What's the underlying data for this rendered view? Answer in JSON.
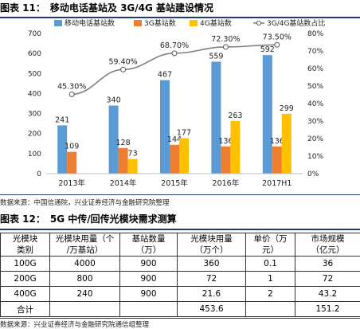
{
  "figure1": {
    "label": "图表 11：",
    "title": "移动电话基站及 3G/4G 基站建设情况",
    "source": "数据来源：中国信通院，兴业证券经济与金融研究院整理"
  },
  "chart_data": {
    "type": "bar",
    "categories": [
      "2013年",
      "2014年",
      "2015年",
      "2016年",
      "2017H1"
    ],
    "series": [
      {
        "name": "移动电话基站数",
        "values": [
          241,
          340,
          467,
          559,
          592
        ],
        "color": "#5b9bd5"
      },
      {
        "name": "3G基站数",
        "values": [
          109,
          128,
          144,
          136,
          136
        ],
        "color": "#ed7d31"
      },
      {
        "name": "4G基站数",
        "values": [
          null,
          73,
          177,
          263,
          299
        ],
        "color": "#ffc000"
      },
      {
        "name": "3G/4G基站数占比",
        "type": "line",
        "axis": "right",
        "values": [
          45.3,
          59.4,
          68.7,
          72.3,
          73.5
        ],
        "color": "#7f7f7f"
      }
    ],
    "value_labels": {
      "移动电话基站数": [
        "241",
        "340",
        "467",
        "559",
        "592"
      ],
      "3G基站数": [
        "109",
        "128",
        "144",
        "136",
        "136"
      ],
      "4G基站数": [
        "",
        "73",
        "177",
        "263",
        "299"
      ],
      "3G/4G基站数占比": [
        "45.30%",
        "59.40%",
        "68.70%",
        "72.30%",
        "73.50%"
      ]
    },
    "y_left": {
      "min": 0,
      "max": 700,
      "ticks": [
        0,
        100,
        200,
        300,
        400,
        500,
        600,
        700
      ]
    },
    "y_right": {
      "min": 0,
      "max": 80,
      "ticks": [
        "0%",
        "10%",
        "20%",
        "30%",
        "40%",
        "50%",
        "60%",
        "70%",
        "80%"
      ]
    },
    "legend": "top"
  },
  "figure2": {
    "label": "图表 12：",
    "title": "5G 中传/回传光模块需求测算",
    "source": "数据来源：兴业证券经济与金融研究院通信组整理"
  },
  "table": {
    "headers": [
      [
        "光模块",
        "类别"
      ],
      [
        "光模块用量（个",
        "/万基站）"
      ],
      [
        "基站数量",
        "（万）"
      ],
      [
        "光模块用量",
        "（万个）"
      ],
      [
        "单价（万",
        "元）"
      ],
      [
        "市场规模",
        "（亿元）"
      ]
    ],
    "rows": [
      [
        "100G",
        "4000",
        "900",
        "360",
        "0.1",
        "36"
      ],
      [
        "200G",
        "800",
        "900",
        "72",
        "1",
        "72"
      ],
      [
        "400G",
        "240",
        "900",
        "21.6",
        "2",
        "43.2"
      ],
      [
        "合计",
        "",
        "",
        "453.6",
        "",
        "151.2"
      ]
    ]
  }
}
